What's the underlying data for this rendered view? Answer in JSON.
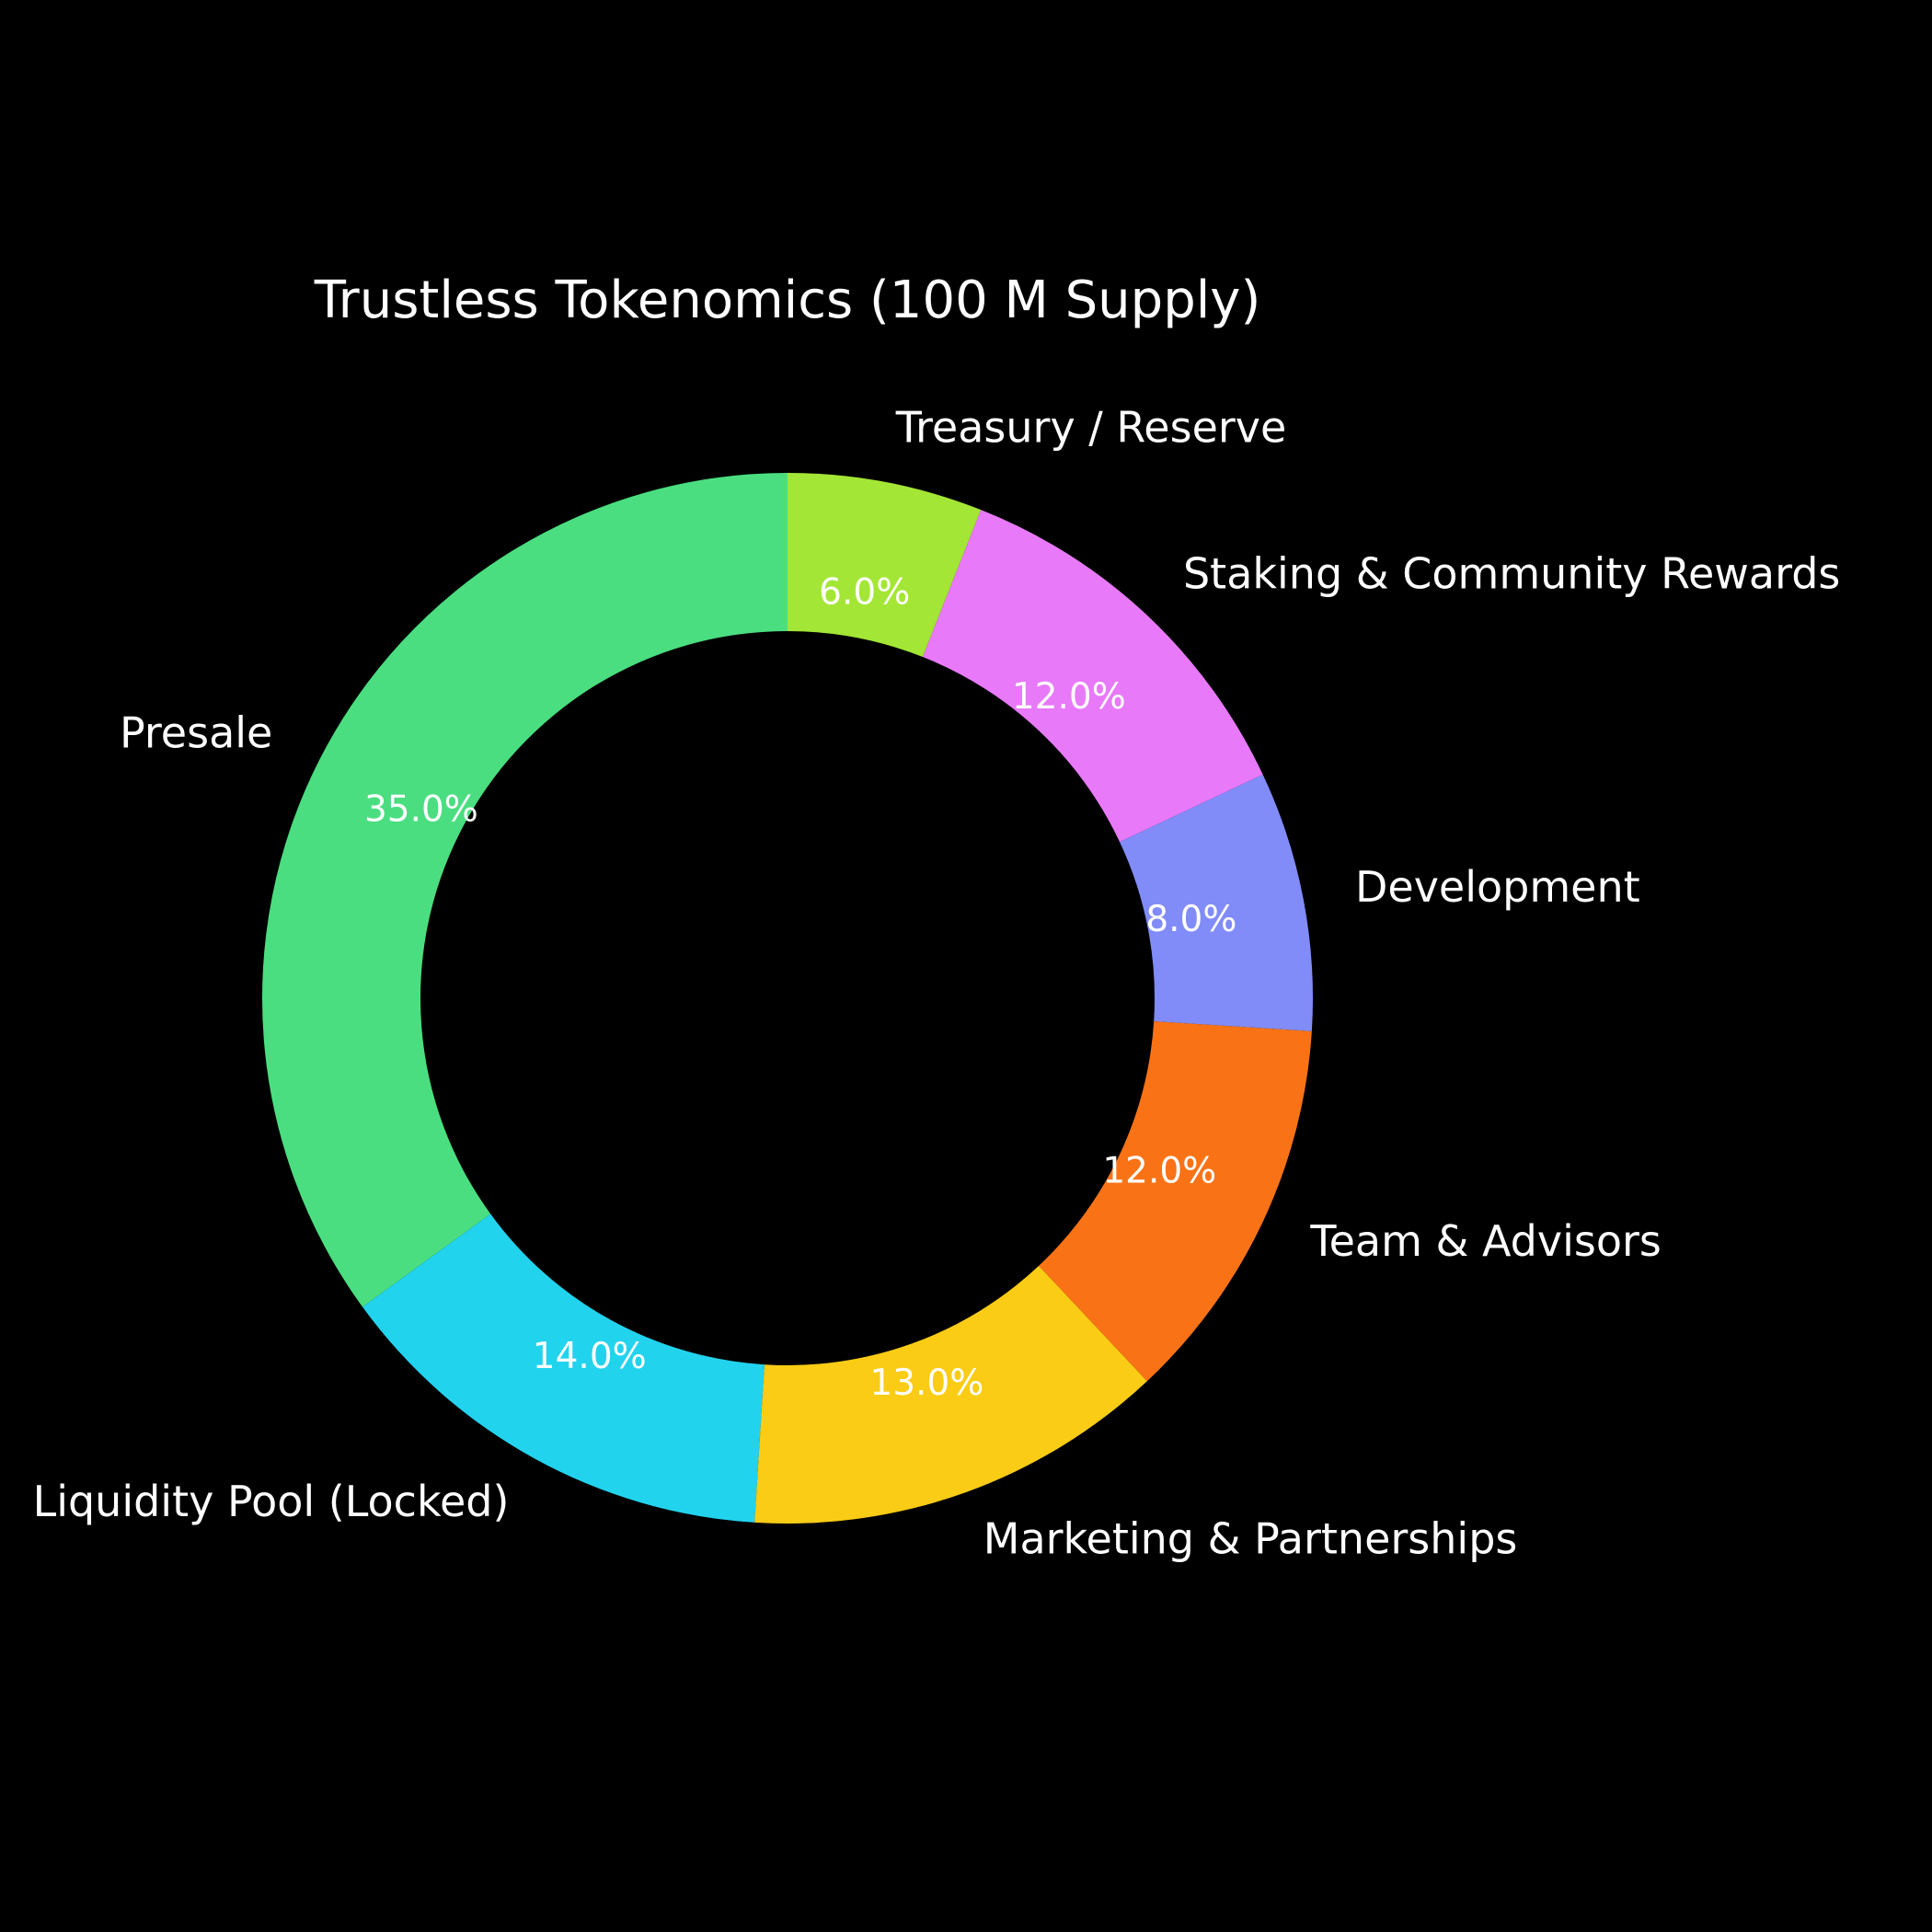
{
  "chart_data": {
    "type": "pie",
    "title": "Trustless Tokenomics (100 M Supply)",
    "style": "donut",
    "start_angle_deg": 90,
    "direction": "counterclockwise",
    "background": "#000000",
    "text_color": "#ffffff",
    "categories": [
      "Presale",
      "Liquidity Pool (Locked)",
      "Marketing & Partnerships",
      "Team & Advisors",
      "Development",
      "Staking & Community Rewards",
      "Treasury / Reserve"
    ],
    "values": [
      35.0,
      14.0,
      13.0,
      12.0,
      8.0,
      12.0,
      6.0
    ],
    "value_labels": [
      "35.0%",
      "14.0%",
      "13.0%",
      "12.0%",
      "8.0%",
      "12.0%",
      "6.0%"
    ],
    "colors": [
      "#4ade80",
      "#22d3ee",
      "#facc15",
      "#f97316",
      "#818cf8",
      "#e879f9",
      "#a3e635"
    ]
  }
}
